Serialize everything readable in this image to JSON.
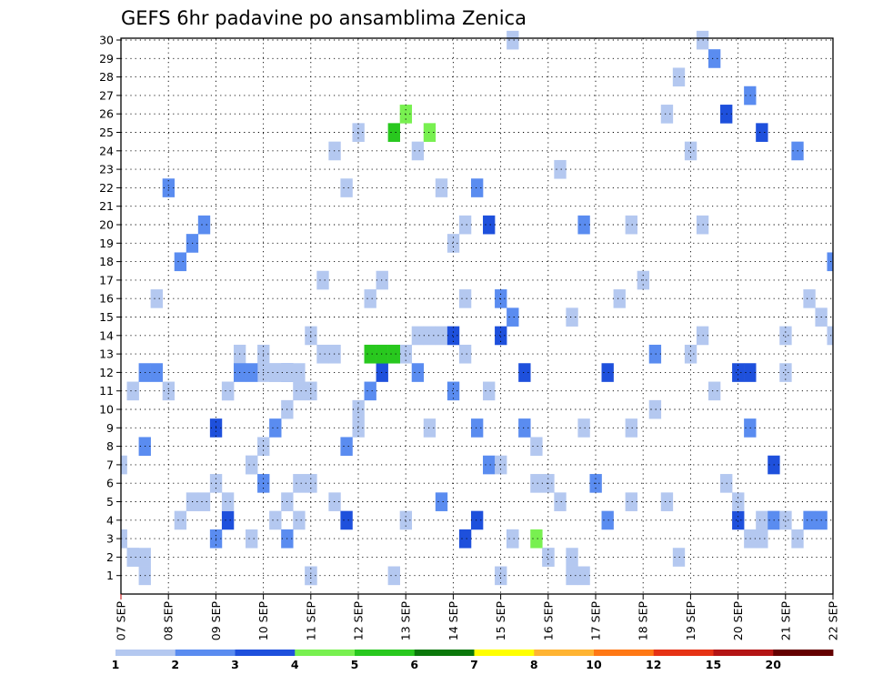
{
  "chart_data": {
    "type": "heatmap",
    "title": "GEFS 6hr padavine po ansamblima Zenica",
    "xlabel": "",
    "ylabel": "",
    "x_tick_labels": [
      "07 SEP",
      "08 SEP",
      "09 SEP",
      "10 SEP",
      "11 SEP",
      "12 SEP",
      "13 SEP",
      "14 SEP",
      "15 SEP",
      "16 SEP",
      "17 SEP",
      "18 SEP",
      "19 SEP",
      "20 SEP",
      "21 SEP",
      "22 SEP"
    ],
    "y_tick_labels": [
      "1",
      "2",
      "3",
      "4",
      "5",
      "6",
      "7",
      "8",
      "9",
      "10",
      "11",
      "12",
      "13",
      "14",
      "15",
      "16",
      "17",
      "18",
      "19",
      "20",
      "21",
      "22",
      "23",
      "24",
      "25",
      "26",
      "27",
      "28",
      "29",
      "30"
    ],
    "xlim_steps": [
      0,
      60
    ],
    "ylim": [
      0,
      30
    ],
    "grid": true,
    "colorbar": {
      "labels": [
        "1",
        "2",
        "3",
        "4",
        "5",
        "6",
        "7",
        "8",
        "10",
        "12",
        "15",
        "20"
      ],
      "colors": [
        "#b4c8f0",
        "#5a8cf0",
        "#1e50dc",
        "#78f050",
        "#28c81e",
        "#0a780a",
        "#ffff00",
        "#ffb432",
        "#ff7814",
        "#e63214",
        "#b41414",
        "#640000"
      ]
    },
    "cells": [
      [
        -1,
        0,
        3,
        1
      ],
      [
        0,
        0,
        2,
        1
      ],
      [
        1,
        0,
        1,
        1
      ],
      [
        28,
        0,
        3,
        3
      ],
      [
        -1,
        1,
        3,
        1
      ],
      [
        0,
        1,
        2,
        1
      ],
      [
        1,
        1,
        2,
        1
      ],
      [
        7,
        1,
        3,
        2
      ],
      [
        8,
        1,
        4,
        3
      ],
      [
        8,
        1,
        5,
        1
      ],
      [
        10,
        1,
        7,
        1
      ],
      [
        11,
        1,
        8,
        1
      ],
      [
        12,
        1,
        9,
        2
      ],
      [
        13,
        1,
        10,
        1
      ],
      [
        14,
        1,
        4,
        1
      ],
      [
        15,
        1,
        1,
        1
      ],
      [
        13,
        2,
        12,
        2
      ],
      [
        15,
        2,
        1,
        1
      ],
      [
        30,
        2,
        7,
        2
      ],
      [
        31,
        2,
        1,
        1
      ],
      [
        32,
        2,
        3,
        2
      ],
      [
        34,
        2,
        6,
        1
      ],
      [
        -1,
        3,
        7,
        1
      ],
      [
        1,
        3,
        8,
        2
      ],
      [
        10,
        3,
        7,
        1
      ],
      [
        11,
        3,
        13,
        1
      ],
      [
        12,
        3,
        4,
        1
      ],
      [
        13,
        3,
        5,
        1
      ],
      [
        14,
        3,
        6,
        1
      ],
      [
        15,
        3,
        14,
        1
      ],
      [
        17,
        3,
        13,
        1
      ],
      [
        18,
        3,
        8,
        2
      ],
      [
        19,
        3,
        9,
        1
      ],
      [
        20,
        3,
        11,
        2
      ],
      [
        21,
        3,
        12,
        3
      ],
      [
        22,
        3,
        1,
        1
      ],
      [
        23,
        3,
        13,
        1
      ],
      [
        24,
        3,
        14,
        1
      ],
      [
        25,
        3,
        9,
        1
      ],
      [
        26,
        3,
        14,
        1
      ],
      [
        27,
        3,
        11,
        2
      ],
      [
        28,
        3,
        13,
        1
      ],
      [
        29,
        3,
        4,
        3
      ],
      [
        31,
        3,
        14,
        3
      ],
      [
        32,
        3,
        15,
        2
      ],
      [
        33,
        3,
        9,
        1
      ],
      [
        35,
        3,
        6,
        1
      ],
      [
        36,
        3,
        5,
        1
      ],
      [
        37,
        3,
        15,
        1
      ],
      [
        40,
        3,
        4,
        2
      ],
      [
        42,
        3,
        5,
        1
      ],
      [
        42,
        3,
        20,
        1
      ],
      [
        44,
        3,
        13,
        2
      ],
      [
        45,
        3,
        26,
        1
      ],
      [
        46,
        3,
        28,
        1
      ],
      [
        47,
        3,
        24,
        1
      ],
      [
        48,
        3,
        30,
        1
      ],
      [
        49,
        3,
        29,
        2
      ],
      [
        50,
        3,
        26,
        3
      ],
      [
        51,
        3,
        4,
        3
      ],
      [
        51,
        3,
        12,
        3
      ],
      [
        52,
        3,
        9,
        2
      ],
      [
        52,
        3,
        12,
        3
      ],
      [
        53,
        3,
        4,
        1
      ],
      [
        53,
        3,
        25,
        3
      ],
      [
        54,
        3,
        4,
        1
      ],
      [
        54,
        3,
        7,
        3
      ],
      [
        55,
        3,
        12,
        1
      ],
      [
        55,
        3,
        14,
        1
      ],
      [
        56,
        3,
        24,
        2
      ],
      [
        57,
        3,
        16,
        1
      ],
      [
        58,
        3,
        15,
        1
      ],
      [
        59,
        3,
        14,
        1
      ],
      [
        60,
        3,
        13,
        1
      ],
      [
        0,
        4,
        11,
        1
      ],
      [
        1,
        4,
        12,
        2
      ],
      [
        2,
        4,
        12,
        2
      ],
      [
        2,
        4,
        16,
        1
      ],
      [
        3,
        4,
        11,
        1
      ],
      [
        4,
        4,
        18,
        2
      ],
      [
        5,
        4,
        19,
        2
      ],
      [
        6,
        4,
        20,
        2
      ],
      [
        7,
        4,
        9,
        3
      ],
      [
        8,
        4,
        11,
        1
      ],
      [
        9,
        4,
        13,
        1
      ],
      [
        10,
        4,
        3,
        1
      ],
      [
        11,
        4,
        12,
        1
      ],
      [
        12,
        4,
        12,
        1
      ],
      [
        13,
        4,
        3,
        2
      ],
      [
        14,
        4,
        12,
        1
      ],
      [
        15,
        4,
        11,
        1
      ],
      [
        16,
        4,
        17,
        1
      ],
      [
        17,
        4,
        5,
        1
      ],
      [
        18,
        4,
        4,
        3
      ],
      [
        19,
        4,
        10,
        1
      ],
      [
        20,
        4,
        13,
        5
      ],
      [
        21,
        4,
        13,
        5
      ],
      [
        22,
        4,
        13,
        5
      ],
      [
        23,
        4,
        4,
        1
      ],
      [
        24,
        4,
        12,
        2
      ],
      [
        25,
        4,
        25,
        4
      ],
      [
        26,
        4,
        5,
        2
      ],
      [
        27,
        4,
        14,
        3
      ],
      [
        28,
        4,
        16,
        1
      ],
      [
        29,
        4,
        22,
        2
      ],
      [
        30,
        4,
        20,
        3
      ],
      [
        31,
        4,
        16,
        2
      ],
      [
        32,
        4,
        30,
        1
      ],
      [
        33,
        4,
        9,
        2
      ],
      [
        34,
        4,
        8,
        1
      ],
      [
        35,
        4,
        2,
        1
      ],
      [
        36,
        4,
        23,
        1
      ],
      [
        37,
        4,
        1,
        1
      ],
      [
        37,
        4,
        2,
        1
      ],
      [
        38,
        4,
        1,
        1
      ],
      [
        38,
        4,
        9,
        1
      ],
      [
        38,
        4,
        20,
        2
      ],
      [
        39,
        4,
        6,
        2
      ],
      [
        40,
        4,
        12,
        3
      ],
      [
        41,
        4,
        16,
        1
      ],
      [
        42,
        4,
        9,
        1
      ],
      [
        43,
        4,
        17,
        1
      ],
      [
        44,
        4,
        10,
        1
      ],
      [
        45,
        4,
        5,
        1
      ],
      [
        46,
        4,
        2,
        1
      ],
      [
        47,
        4,
        13,
        1
      ],
      [
        48,
        4,
        14,
        1
      ],
      [
        48,
        4,
        20,
        1
      ],
      [
        49,
        4,
        11,
        1
      ],
      [
        50,
        4,
        6,
        1
      ],
      [
        51,
        4,
        5,
        1
      ],
      [
        52,
        4,
        3,
        1
      ],
      [
        52,
        4,
        27,
        2
      ],
      [
        53,
        4,
        3,
        1
      ],
      [
        54,
        4,
        4,
        2
      ],
      [
        55,
        4,
        4,
        1
      ],
      [
        56,
        4,
        3,
        1
      ],
      [
        57,
        4,
        4,
        2
      ],
      [
        58,
        4,
        4,
        2
      ],
      [
        59,
        4,
        18,
        2
      ],
      [
        60,
        4,
        12,
        1
      ],
      [
        3,
        5,
        22,
        2
      ],
      [
        4,
        5,
        4,
        1
      ],
      [
        5,
        5,
        5,
        1
      ],
      [
        6,
        5,
        5,
        1
      ],
      [
        7,
        5,
        6,
        1
      ],
      [
        8,
        5,
        11,
        1
      ],
      [
        9,
        5,
        12,
        2
      ],
      [
        10,
        5,
        12,
        2
      ],
      [
        11,
        5,
        6,
        2
      ],
      [
        12,
        5,
        12,
        1
      ],
      [
        13,
        5,
        12,
        1
      ],
      [
        14,
        5,
        11,
        1
      ],
      [
        15,
        5,
        6,
        1
      ],
      [
        16,
        5,
        13,
        1
      ],
      [
        17,
        5,
        24,
        1
      ],
      [
        18,
        5,
        22,
        1
      ],
      [
        19,
        5,
        25,
        1
      ],
      [
        20,
        5,
        16,
        1
      ],
      [
        21,
        5,
        17,
        1
      ],
      [
        22,
        5,
        25,
        5
      ],
      [
        23,
        5,
        26,
        4
      ],
      [
        24,
        5,
        24,
        1
      ],
      [
        25,
        5,
        14,
        1
      ],
      [
        26,
        5,
        22,
        1
      ],
      [
        27,
        5,
        19,
        1
      ],
      [
        28,
        5,
        20,
        1
      ],
      [
        29,
        5,
        9,
        2
      ],
      [
        30,
        5,
        11,
        1
      ],
      [
        31,
        5,
        7,
        1
      ],
      [
        32,
        5,
        3,
        1
      ],
      [
        33,
        5,
        12,
        3
      ],
      [
        34,
        5,
        3,
        4
      ],
      [
        35,
        5,
        2,
        1
      ]
    ]
  }
}
